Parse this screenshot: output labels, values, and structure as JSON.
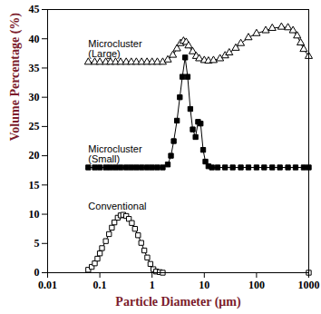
{
  "chart_data": {
    "type": "line",
    "x_label": "Particle Diameter (μm)",
    "y_label": "Volume Percentage (%)",
    "log": "x",
    "grid": false,
    "xlim": [
      0.01,
      1000
    ],
    "xticks": [
      0.01,
      0.1,
      1,
      10,
      100,
      1000
    ],
    "ylim": [
      0,
      45
    ],
    "yticks": [
      0,
      5,
      10,
      15,
      20,
      25,
      30,
      35,
      40,
      45
    ],
    "series": [
      {
        "name": "Microcluster\n(Large)",
        "color": "#000000",
        "marker": "triangle-open",
        "x": [
          0.06,
          0.08,
          0.1,
          0.13,
          0.16,
          0.2,
          0.25,
          0.32,
          0.4,
          0.5,
          0.63,
          0.8,
          1,
          1.26,
          1.6,
          2,
          2.5,
          3,
          3.5,
          4,
          4.5,
          5,
          6,
          7,
          8,
          10,
          12,
          15,
          20,
          25,
          30,
          40,
          50,
          70,
          100,
          150,
          200,
          300,
          400,
          500,
          600,
          700,
          800,
          1000
        ],
        "values": [
          36,
          36,
          36,
          36,
          36,
          36,
          36,
          36,
          36,
          36,
          36,
          36,
          36,
          36,
          36,
          36.4,
          37.2,
          38.3,
          39.2,
          39.6,
          39.4,
          38.8,
          37.8,
          37,
          36.6,
          36.3,
          36.2,
          36.3,
          36.6,
          37.1,
          37.6,
          38.4,
          39.2,
          40.2,
          40.9,
          41.4,
          41.8,
          42,
          41.9,
          41.4,
          40.5,
          39.3,
          38.2,
          37
        ]
      },
      {
        "name": "Microcluster\n(Small)",
        "color": "#000000",
        "marker": "square",
        "x": [
          0.06,
          0.08,
          0.1,
          0.13,
          0.16,
          0.2,
          0.25,
          0.32,
          0.4,
          0.5,
          0.63,
          0.8,
          1,
          1.26,
          1.6,
          2,
          2.3,
          2.6,
          3,
          3.4,
          3.8,
          4.3,
          4.8,
          5.4,
          6,
          6.8,
          7.6,
          8.5,
          9.5,
          10.5,
          12,
          14,
          18,
          25,
          35,
          50,
          70,
          100,
          140,
          200,
          280,
          400,
          560,
          800,
          1000
        ],
        "values": [
          18,
          18,
          18,
          18,
          18,
          18,
          18,
          18,
          18,
          18,
          18,
          18,
          18,
          18,
          18,
          18.5,
          20,
          22.5,
          26,
          30,
          33.5,
          36.8,
          33.5,
          28,
          24.5,
          23.2,
          25.8,
          25.5,
          21,
          19,
          18.2,
          18,
          18,
          18,
          18,
          18,
          18,
          18,
          18,
          18,
          18,
          18,
          18,
          18,
          18
        ]
      },
      {
        "name": "Conventional",
        "color": "#000000",
        "marker": "square-open",
        "x": [
          0.06,
          0.07,
          0.08,
          0.09,
          0.1,
          0.11,
          0.13,
          0.15,
          0.17,
          0.19,
          0.22,
          0.25,
          0.28,
          0.32,
          0.36,
          0.41,
          0.47,
          0.54,
          0.62,
          0.71,
          0.81,
          0.93,
          1.06,
          1.2,
          1.4,
          1.6,
          1000
        ],
        "values": [
          0.5,
          1,
          1.6,
          2.4,
          3.3,
          4.2,
          5.4,
          6.6,
          7.7,
          8.6,
          9.4,
          9.8,
          9.9,
          9.7,
          9.2,
          8.5,
          7.5,
          6.4,
          5.1,
          3.8,
          2.6,
          1.5,
          0.6,
          0.2,
          0.1,
          0,
          0
        ]
      }
    ]
  }
}
